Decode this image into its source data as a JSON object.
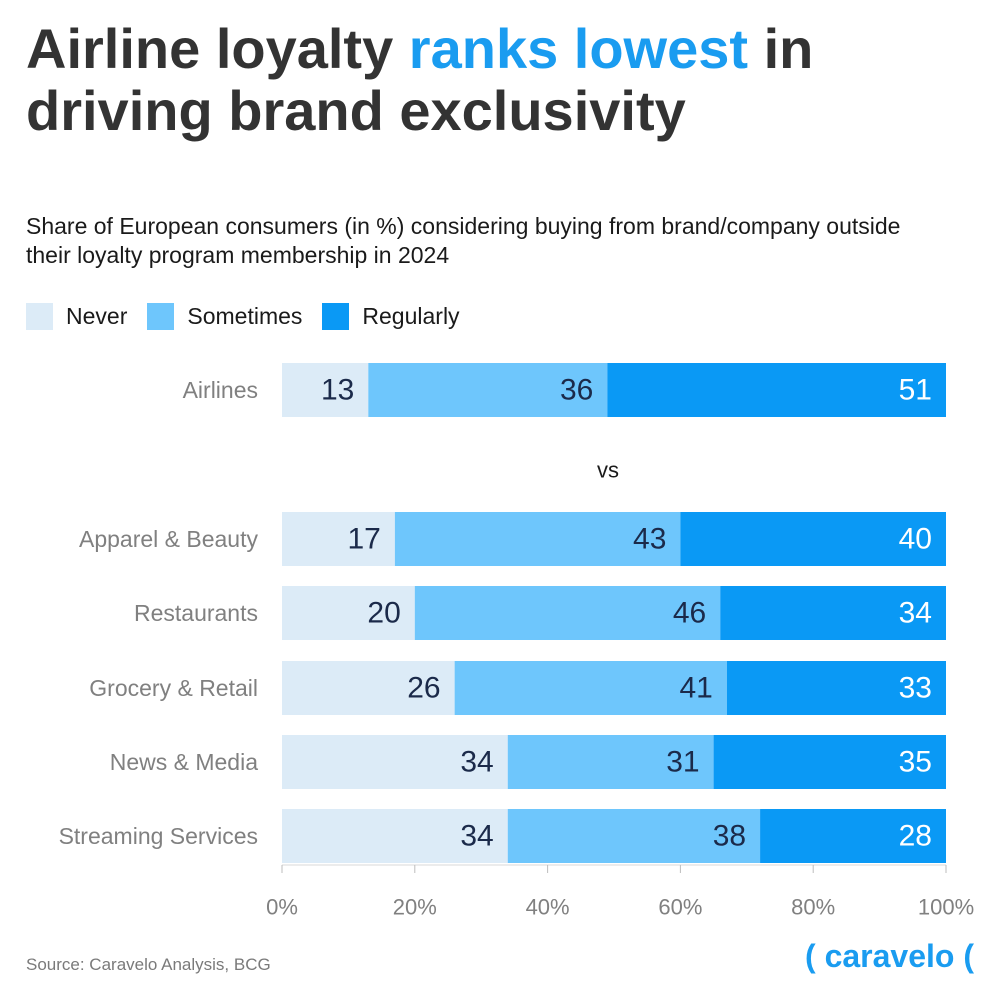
{
  "title": {
    "prefix": "Airline loyalty ",
    "highlight": "ranks lowest",
    "suffix": " in driving brand exclusivity"
  },
  "subtitle": "Share of European consumers (in %) considering buying from brand/company outside their loyalty program membership in 2024",
  "legend": [
    {
      "label": "Never",
      "color": "#dcebf7"
    },
    {
      "label": "Sometimes",
      "color": "#6ec6fc"
    },
    {
      "label": "Regularly",
      "color": "#0a99f5"
    }
  ],
  "chart_data": {
    "type": "bar",
    "orientation": "horizontal",
    "stacked": true,
    "categories": [
      "Airlines",
      "Apparel & Beauty",
      "Restaurants",
      "Grocery & Retail",
      "News & Media",
      "Streaming Services"
    ],
    "series": [
      {
        "name": "Never",
        "values": [
          13,
          17,
          20,
          26,
          34,
          34
        ]
      },
      {
        "name": "Sometimes",
        "values": [
          36,
          43,
          46,
          41,
          31,
          38
        ]
      },
      {
        "name": "Regularly",
        "values": [
          51,
          40,
          34,
          33,
          35,
          28
        ]
      }
    ],
    "separator_label": "vs",
    "xlim": [
      0,
      100
    ],
    "xticks": [
      "0%",
      "20%",
      "40%",
      "60%",
      "80%",
      "100%"
    ],
    "grid": false,
    "legend_position": "top-left"
  },
  "footer": {
    "source": "Source: Caravelo Analysis, BCG",
    "brand": "( caravelo ("
  }
}
